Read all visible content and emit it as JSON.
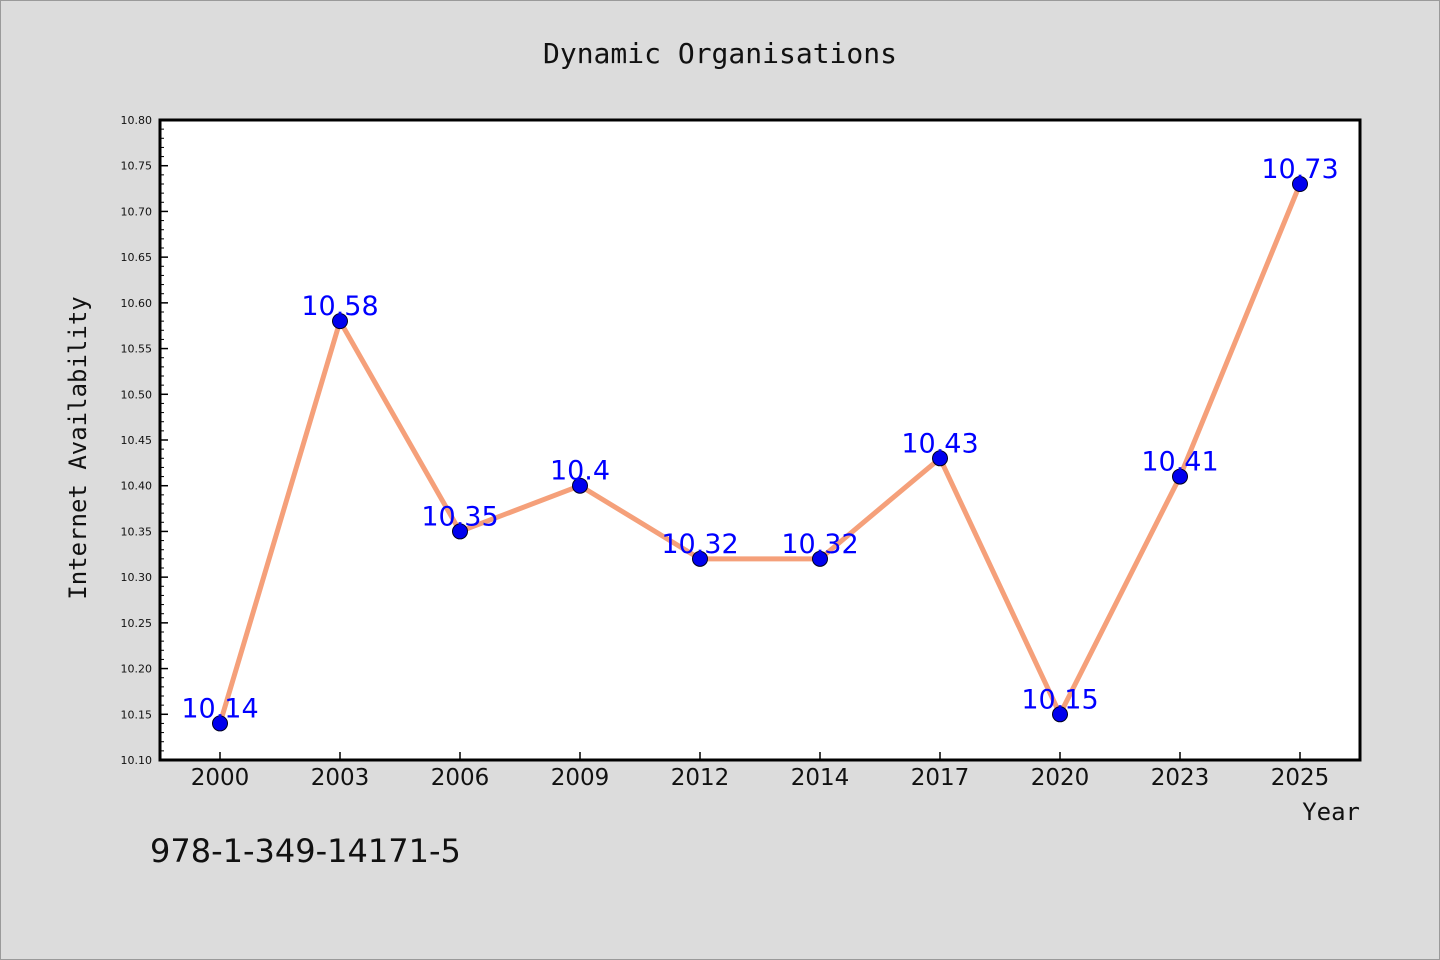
{
  "footer_code": "978-1-349-14171-5",
  "chart_data": {
    "type": "line",
    "title": "Dynamic Organisations",
    "xlabel": "Year",
    "ylabel": "Internet Availability",
    "categories": [
      "2000",
      "2003",
      "2006",
      "2009",
      "2012",
      "2014",
      "2017",
      "2020",
      "2023",
      "2025"
    ],
    "series": [
      {
        "values": [
          10.14,
          10.58,
          10.35,
          10.4,
          10.32,
          10.32,
          10.43,
          10.15,
          10.41,
          10.73
        ],
        "labels": [
          "10.14",
          "10.58",
          "10.35",
          "10.4",
          "10.32",
          "10.32",
          "10.43",
          "10.15",
          "10.41",
          "10.73"
        ],
        "line_color": "#f5a07a",
        "marker_color": "#0000ee",
        "label_color": "#0000ff"
      }
    ],
    "ylim": [
      10.1,
      10.8
    ],
    "yticks": [
      "10.10",
      "10.15",
      "10.20",
      "10.25",
      "10.30",
      "10.35",
      "10.40",
      "10.45",
      "10.50",
      "10.55",
      "10.60",
      "10.65",
      "10.70",
      "10.75",
      "10.80"
    ],
    "grid": false,
    "legend": "none"
  }
}
